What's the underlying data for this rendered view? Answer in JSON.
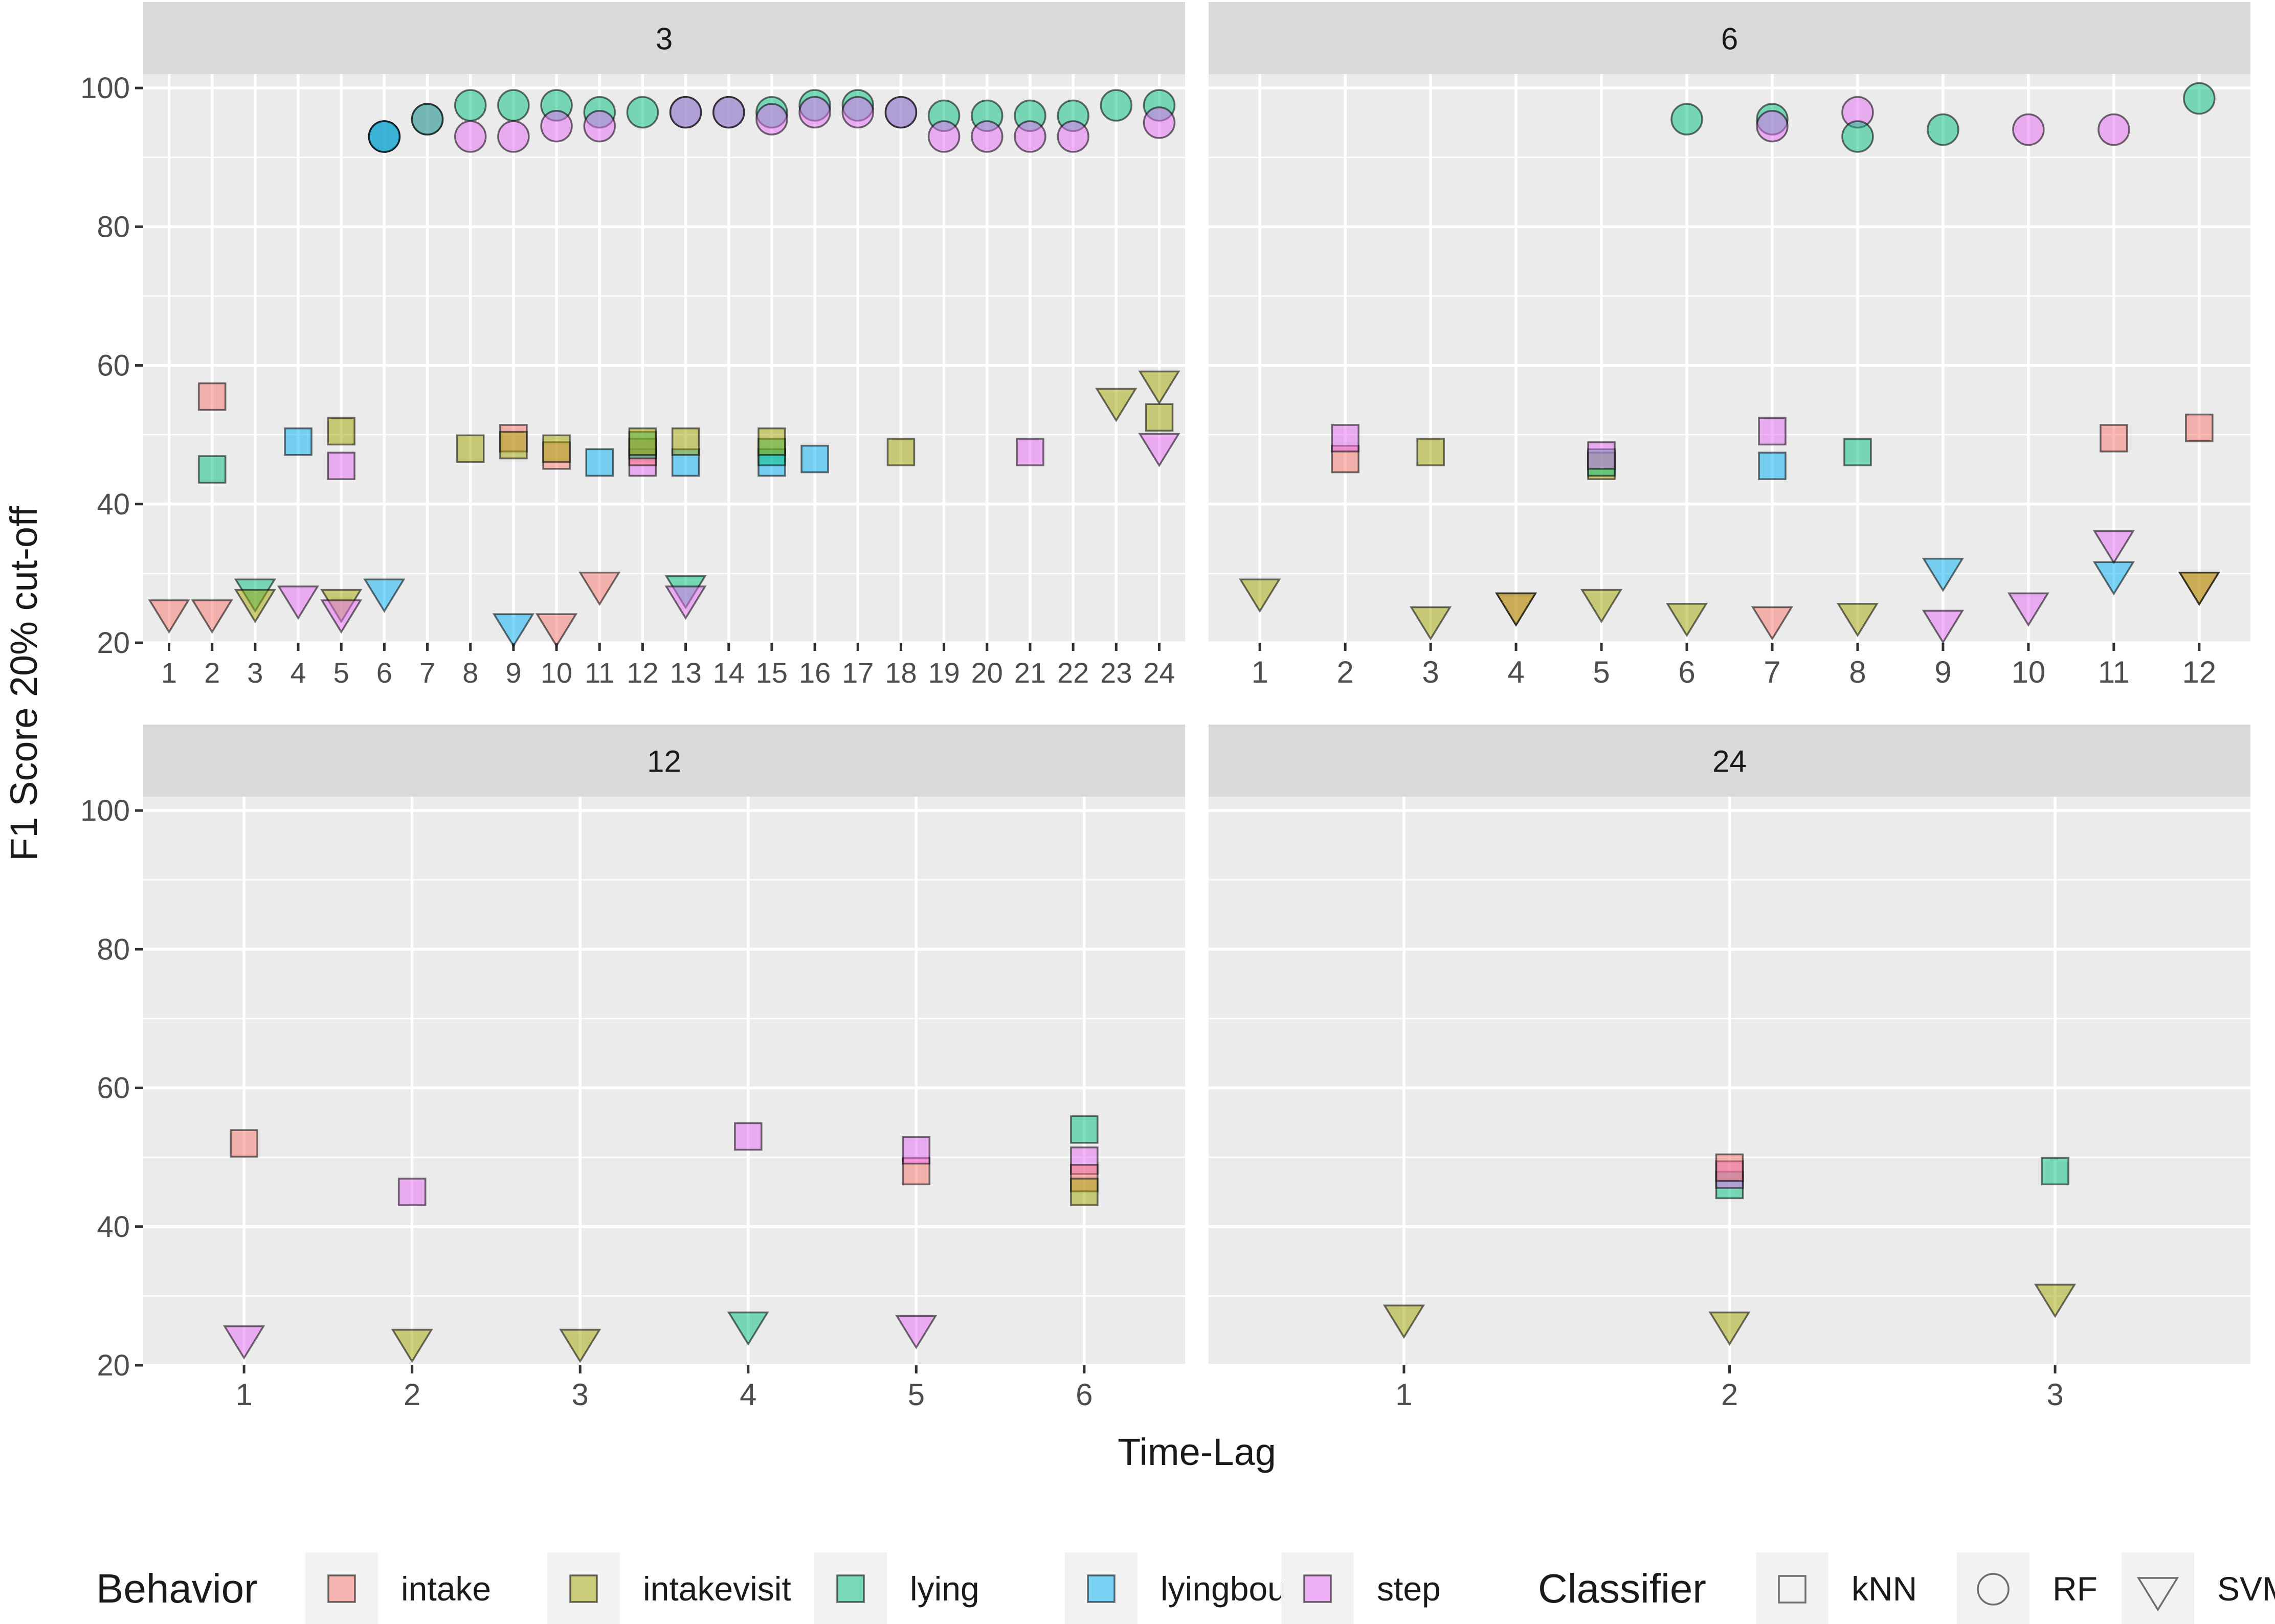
{
  "colors": {
    "intake": "#F8766D",
    "intakevisit": "#A3A500",
    "lying": "#00BF7D",
    "lyingbout": "#00B0F6",
    "step": "#E76BF3",
    "panel_bg": "#EBEBEB",
    "strip_bg": "#D9D9D9",
    "grid": "#FFFFFF",
    "text": "#1A1A1A",
    "tick_text": "#4D4D4D"
  },
  "chart_data": {
    "type": "scatter",
    "ylabel": "F1 Score 20% cut-off",
    "xlabel": "Time-Lag",
    "ylim": [
      20,
      102
    ],
    "yticks": [
      20,
      40,
      60,
      80,
      100
    ],
    "legend": {
      "placement": "bottom",
      "behavior_title": "Behavior",
      "behaviors": [
        "intake",
        "intakevisit",
        "lying",
        "lyingbout",
        "step"
      ],
      "classifier_title": "Classifier",
      "classifiers": [
        "kNN",
        "RF",
        "SVM"
      ]
    },
    "panels": [
      {
        "title": "3",
        "xticks": [
          "1",
          "2",
          "3",
          "4",
          "5",
          "6",
          "7",
          "8",
          "9",
          "10",
          "11",
          "12",
          "13",
          "14",
          "15",
          "16",
          "17",
          "18",
          "19",
          "20",
          "21",
          "22",
          "23",
          "24"
        ],
        "points": [
          {
            "x": 2,
            "y": 55.5,
            "b": "intake",
            "c": "kNN"
          },
          {
            "x": 2,
            "y": 45,
            "b": "lying",
            "c": "kNN"
          },
          {
            "x": 4,
            "y": 49,
            "b": "lyingbout",
            "c": "kNN"
          },
          {
            "x": 5,
            "y": 50.5,
            "b": "intakevisit",
            "c": "kNN"
          },
          {
            "x": 5,
            "y": 45.5,
            "b": "step",
            "c": "kNN"
          },
          {
            "x": 8,
            "y": 48,
            "b": "intakevisit",
            "c": "kNN"
          },
          {
            "x": 9,
            "y": 49.5,
            "b": "intake",
            "c": "kNN"
          },
          {
            "x": 9,
            "y": 48.5,
            "b": "intakevisit",
            "c": "kNN"
          },
          {
            "x": 10,
            "y": 47,
            "b": "intake",
            "c": "kNN"
          },
          {
            "x": 10,
            "y": 48,
            "b": "intakevisit",
            "c": "kNN"
          },
          {
            "x": 11,
            "y": 46,
            "b": "lyingbout",
            "c": "kNN"
          },
          {
            "x": 12,
            "y": 46,
            "b": "step",
            "c": "kNN"
          },
          {
            "x": 12,
            "y": 47.5,
            "b": "intake",
            "c": "kNN"
          },
          {
            "x": 12,
            "y": 48.5,
            "b": "lying",
            "c": "kNN"
          },
          {
            "x": 12,
            "y": 49,
            "b": "intakevisit",
            "c": "kNN"
          },
          {
            "x": 13,
            "y": 46,
            "b": "lyingbout",
            "c": "kNN"
          },
          {
            "x": 13,
            "y": 49,
            "b": "intakevisit",
            "c": "kNN"
          },
          {
            "x": 15,
            "y": 46,
            "b": "lyingbout",
            "c": "kNN"
          },
          {
            "x": 15,
            "y": 47.5,
            "b": "lying",
            "c": "kNN"
          },
          {
            "x": 15,
            "y": 49,
            "b": "intakevisit",
            "c": "kNN"
          },
          {
            "x": 16,
            "y": 46.5,
            "b": "lyingbout",
            "c": "kNN"
          },
          {
            "x": 18,
            "y": 47.5,
            "b": "intakevisit",
            "c": "kNN"
          },
          {
            "x": 21,
            "y": 47.5,
            "b": "step",
            "c": "kNN"
          },
          {
            "x": 24,
            "y": 52.5,
            "b": "intakevisit",
            "c": "kNN"
          },
          {
            "x": 6,
            "y": 93,
            "b": "step",
            "c": "RF"
          },
          {
            "x": 6,
            "y": 93,
            "b": "lying",
            "c": "RF"
          },
          {
            "x": 6,
            "y": 93,
            "b": "lyingbout",
            "c": "RF"
          },
          {
            "x": 7,
            "y": 95.5,
            "b": "step",
            "c": "RF"
          },
          {
            "x": 7,
            "y": 95.5,
            "b": "lying",
            "c": "RF"
          },
          {
            "x": 8,
            "y": 97.5,
            "b": "lying",
            "c": "RF"
          },
          {
            "x": 8,
            "y": 93,
            "b": "step",
            "c": "RF"
          },
          {
            "x": 9,
            "y": 97.5,
            "b": "lying",
            "c": "RF"
          },
          {
            "x": 9,
            "y": 93,
            "b": "step",
            "c": "RF"
          },
          {
            "x": 10,
            "y": 97.5,
            "b": "lying",
            "c": "RF"
          },
          {
            "x": 10,
            "y": 94.5,
            "b": "step",
            "c": "RF"
          },
          {
            "x": 11,
            "y": 96.5,
            "b": "lying",
            "c": "RF"
          },
          {
            "x": 11,
            "y": 94.5,
            "b": "step",
            "c": "RF"
          },
          {
            "x": 12,
            "y": 96.5,
            "b": "lying",
            "c": "RF"
          },
          {
            "x": 13,
            "y": 96.5,
            "b": "lying",
            "c": "RF"
          },
          {
            "x": 13,
            "y": 96.5,
            "b": "step",
            "c": "RF"
          },
          {
            "x": 14,
            "y": 96.5,
            "b": "lying",
            "c": "RF"
          },
          {
            "x": 14,
            "y": 96.5,
            "b": "step",
            "c": "RF"
          },
          {
            "x": 15,
            "y": 96.5,
            "b": "lying",
            "c": "RF"
          },
          {
            "x": 15,
            "y": 95.5,
            "b": "step",
            "c": "RF"
          },
          {
            "x": 16,
            "y": 97.5,
            "b": "lying",
            "c": "RF"
          },
          {
            "x": 16,
            "y": 96.5,
            "b": "step",
            "c": "RF"
          },
          {
            "x": 17,
            "y": 97.5,
            "b": "lying",
            "c": "RF"
          },
          {
            "x": 17,
            "y": 96.5,
            "b": "step",
            "c": "RF"
          },
          {
            "x": 18,
            "y": 96.5,
            "b": "lying",
            "c": "RF"
          },
          {
            "x": 18,
            "y": 96.5,
            "b": "step",
            "c": "RF"
          },
          {
            "x": 19,
            "y": 96,
            "b": "lying",
            "c": "RF"
          },
          {
            "x": 19,
            "y": 93,
            "b": "step",
            "c": "RF"
          },
          {
            "x": 20,
            "y": 96,
            "b": "lying",
            "c": "RF"
          },
          {
            "x": 20,
            "y": 93,
            "b": "step",
            "c": "RF"
          },
          {
            "x": 21,
            "y": 96,
            "b": "lying",
            "c": "RF"
          },
          {
            "x": 21,
            "y": 93,
            "b": "step",
            "c": "RF"
          },
          {
            "x": 22,
            "y": 96,
            "b": "lying",
            "c": "RF"
          },
          {
            "x": 22,
            "y": 93,
            "b": "step",
            "c": "RF"
          },
          {
            "x": 23,
            "y": 97.5,
            "b": "lying",
            "c": "RF"
          },
          {
            "x": 24,
            "y": 97.5,
            "b": "lying",
            "c": "RF"
          },
          {
            "x": 24,
            "y": 95,
            "b": "step",
            "c": "RF"
          },
          {
            "x": 1,
            "y": 24.5,
            "b": "intake",
            "c": "SVM"
          },
          {
            "x": 2,
            "y": 24.5,
            "b": "intake",
            "c": "SVM"
          },
          {
            "x": 3,
            "y": 27.5,
            "b": "lying",
            "c": "SVM"
          },
          {
            "x": 3,
            "y": 26,
            "b": "intakevisit",
            "c": "SVM"
          },
          {
            "x": 4,
            "y": 26.5,
            "b": "step",
            "c": "SVM"
          },
          {
            "x": 5,
            "y": 26,
            "b": "intakevisit",
            "c": "SVM"
          },
          {
            "x": 5,
            "y": 24.5,
            "b": "step",
            "c": "SVM"
          },
          {
            "x": 6,
            "y": 27.5,
            "b": "lyingbout",
            "c": "SVM"
          },
          {
            "x": 9,
            "y": 22.5,
            "b": "lyingbout",
            "c": "SVM"
          },
          {
            "x": 10,
            "y": 22.5,
            "b": "intake",
            "c": "SVM"
          },
          {
            "x": 11,
            "y": 28.5,
            "b": "intake",
            "c": "SVM"
          },
          {
            "x": 13,
            "y": 28,
            "b": "lying",
            "c": "SVM"
          },
          {
            "x": 13,
            "y": 26.5,
            "b": "step",
            "c": "SVM"
          },
          {
            "x": 23,
            "y": 55,
            "b": "intakevisit",
            "c": "SVM"
          },
          {
            "x": 24,
            "y": 57.5,
            "b": "intakevisit",
            "c": "SVM"
          },
          {
            "x": 24,
            "y": 48.5,
            "b": "step",
            "c": "SVM"
          }
        ]
      },
      {
        "title": "6",
        "xticks": [
          "1",
          "2",
          "3",
          "4",
          "5",
          "6",
          "7",
          "8",
          "9",
          "10",
          "11",
          "12"
        ],
        "points": [
          {
            "x": 2,
            "y": 46.5,
            "b": "intake",
            "c": "kNN"
          },
          {
            "x": 2,
            "y": 49.5,
            "b": "step",
            "c": "kNN"
          },
          {
            "x": 3,
            "y": 47.5,
            "b": "intakevisit",
            "c": "kNN"
          },
          {
            "x": 5,
            "y": 45.5,
            "b": "intakevisit",
            "c": "kNN"
          },
          {
            "x": 5,
            "y": 46,
            "b": "lying",
            "c": "kNN"
          },
          {
            "x": 5,
            "y": 47,
            "b": "step",
            "c": "kNN"
          },
          {
            "x": 7,
            "y": 50.5,
            "b": "step",
            "c": "kNN"
          },
          {
            "x": 7,
            "y": 45.5,
            "b": "lyingbout",
            "c": "kNN"
          },
          {
            "x": 8,
            "y": 47.5,
            "b": "lying",
            "c": "kNN"
          },
          {
            "x": 11,
            "y": 49.5,
            "b": "intake",
            "c": "kNN"
          },
          {
            "x": 12,
            "y": 51,
            "b": "intake",
            "c": "kNN"
          },
          {
            "x": 6,
            "y": 95.5,
            "b": "lying",
            "c": "RF"
          },
          {
            "x": 7,
            "y": 95.5,
            "b": "lying",
            "c": "RF"
          },
          {
            "x": 7,
            "y": 94.5,
            "b": "step",
            "c": "RF"
          },
          {
            "x": 8,
            "y": 96.5,
            "b": "step",
            "c": "RF"
          },
          {
            "x": 8,
            "y": 93,
            "b": "lying",
            "c": "RF"
          },
          {
            "x": 9,
            "y": 94,
            "b": "lying",
            "c": "RF"
          },
          {
            "x": 10,
            "y": 94,
            "b": "step",
            "c": "RF"
          },
          {
            "x": 11,
            "y": 94,
            "b": "step",
            "c": "RF"
          },
          {
            "x": 12,
            "y": 98.5,
            "b": "lying",
            "c": "RF"
          },
          {
            "x": 1,
            "y": 27.5,
            "b": "intakevisit",
            "c": "SVM"
          },
          {
            "x": 3,
            "y": 23.5,
            "b": "intakevisit",
            "c": "SVM"
          },
          {
            "x": 4,
            "y": 25.5,
            "b": "intake",
            "c": "SVM"
          },
          {
            "x": 4,
            "y": 25.5,
            "b": "intakevisit",
            "c": "SVM"
          },
          {
            "x": 5,
            "y": 26,
            "b": "intakevisit",
            "c": "SVM"
          },
          {
            "x": 6,
            "y": 24,
            "b": "intakevisit",
            "c": "SVM"
          },
          {
            "x": 7,
            "y": 23.5,
            "b": "intake",
            "c": "SVM"
          },
          {
            "x": 8,
            "y": 24,
            "b": "intakevisit",
            "c": "SVM"
          },
          {
            "x": 9,
            "y": 30.5,
            "b": "lyingbout",
            "c": "SVM"
          },
          {
            "x": 9,
            "y": 23,
            "b": "step",
            "c": "SVM"
          },
          {
            "x": 10,
            "y": 25.5,
            "b": "step",
            "c": "SVM"
          },
          {
            "x": 11,
            "y": 34.5,
            "b": "step",
            "c": "SVM"
          },
          {
            "x": 11,
            "y": 30,
            "b": "lyingbout",
            "c": "SVM"
          },
          {
            "x": 12,
            "y": 28.5,
            "b": "intake",
            "c": "SVM"
          },
          {
            "x": 12,
            "y": 28.5,
            "b": "intakevisit",
            "c": "SVM"
          }
        ]
      },
      {
        "title": "12",
        "xticks": [
          "1",
          "2",
          "3",
          "4",
          "5",
          "6"
        ],
        "points": [
          {
            "x": 1,
            "y": 52,
            "b": "intake",
            "c": "kNN"
          },
          {
            "x": 2,
            "y": 45,
            "b": "step",
            "c": "kNN"
          },
          {
            "x": 4,
            "y": 53,
            "b": "step",
            "c": "kNN"
          },
          {
            "x": 5,
            "y": 48,
            "b": "intake",
            "c": "kNN"
          },
          {
            "x": 5,
            "y": 51,
            "b": "step",
            "c": "kNN"
          },
          {
            "x": 6,
            "y": 54,
            "b": "lying",
            "c": "kNN"
          },
          {
            "x": 6,
            "y": 49.5,
            "b": "step",
            "c": "kNN"
          },
          {
            "x": 6,
            "y": 47,
            "b": "intake",
            "c": "kNN"
          },
          {
            "x": 6,
            "y": 45,
            "b": "intakevisit",
            "c": "kNN"
          },
          {
            "x": 1,
            "y": 24,
            "b": "step",
            "c": "SVM"
          },
          {
            "x": 2,
            "y": 23.5,
            "b": "intakevisit",
            "c": "SVM"
          },
          {
            "x": 3,
            "y": 23.5,
            "b": "intakevisit",
            "c": "SVM"
          },
          {
            "x": 4,
            "y": 26,
            "b": "lying",
            "c": "SVM"
          },
          {
            "x": 5,
            "y": 25.5,
            "b": "step",
            "c": "SVM"
          }
        ]
      },
      {
        "title": "24",
        "xticks": [
          "1",
          "2",
          "3"
        ],
        "points": [
          {
            "x": 2,
            "y": 46,
            "b": "lying",
            "c": "kNN"
          },
          {
            "x": 2,
            "y": 47.5,
            "b": "step",
            "c": "kNN"
          },
          {
            "x": 2,
            "y": 48.5,
            "b": "intake",
            "c": "kNN"
          },
          {
            "x": 3,
            "y": 48,
            "b": "lying",
            "c": "kNN"
          },
          {
            "x": 1,
            "y": 27,
            "b": "intakevisit",
            "c": "SVM"
          },
          {
            "x": 2,
            "y": 26,
            "b": "intakevisit",
            "c": "SVM"
          },
          {
            "x": 3,
            "y": 30,
            "b": "intakevisit",
            "c": "SVM"
          }
        ]
      }
    ]
  }
}
